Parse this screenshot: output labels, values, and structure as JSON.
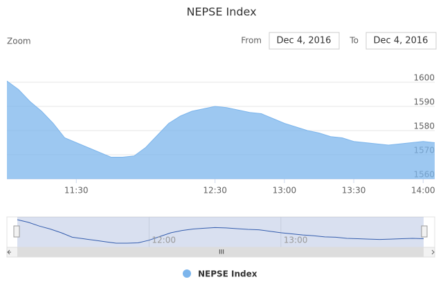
{
  "range_selector": {
    "zoom_label": "Zoom",
    "from_label": "From",
    "from": "Dec 4, 2016",
    "to_label": "To",
    "to": "Dec 4, 2016"
  },
  "chart_data": {
    "type": "area",
    "title": "NEPSE Index",
    "x": [
      "11:00",
      "11:05",
      "11:10",
      "11:15",
      "11:20",
      "11:25",
      "11:30",
      "11:35",
      "11:40",
      "11:45",
      "11:50",
      "11:55",
      "12:00",
      "12:05",
      "12:10",
      "12:15",
      "12:20",
      "12:25",
      "12:30",
      "12:35",
      "12:40",
      "12:45",
      "12:50",
      "12:55",
      "13:00",
      "13:05",
      "13:10",
      "13:15",
      "13:20",
      "13:25",
      "13:30",
      "13:35",
      "13:40",
      "13:45",
      "13:50",
      "13:55",
      "14:00",
      "14:05"
    ],
    "series": [
      {
        "name": "NEPSE Index",
        "color": "#7cb5ec",
        "values": [
          1600.5,
          1597,
          1592,
          1588,
          1583,
          1577,
          1575,
          1573,
          1571,
          1569,
          1569,
          1569.5,
          1573,
          1578,
          1583,
          1586,
          1588,
          1589,
          1590,
          1589.5,
          1588.5,
          1587.5,
          1587,
          1585,
          1583,
          1581.5,
          1580,
          1579,
          1577.5,
          1577,
          1575.5,
          1575,
          1574.5,
          1574,
          1574.5,
          1575,
          1575.5,
          1575
        ]
      }
    ],
    "ylim": [
      1560,
      1600
    ],
    "yticks": [
      1560,
      1570,
      1580,
      1590,
      1600
    ],
    "xticks": [
      "11:30",
      "12:30",
      "13:00",
      "13:30",
      "14:00"
    ],
    "navigator_xticks": [
      "12:00",
      "13:00"
    ],
    "grid": true,
    "legend": "bottom"
  }
}
